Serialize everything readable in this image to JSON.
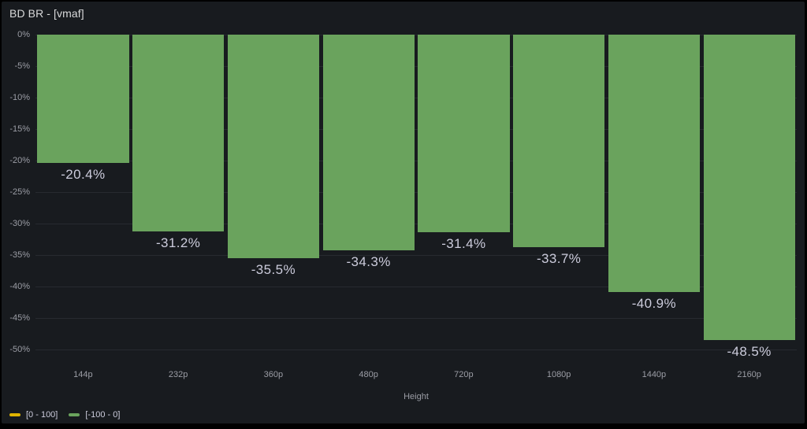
{
  "panel": {
    "title": "BD BR - [vmaf]"
  },
  "chart_data": {
    "type": "bar",
    "orientation": "vertical",
    "title": "BD BR - [vmaf]",
    "xlabel": "Height",
    "ylabel": "",
    "categories": [
      "144p",
      "232p",
      "360p",
      "480p",
      "720p",
      "1080p",
      "1440p",
      "2160p"
    ],
    "values": [
      -20.4,
      -31.2,
      -35.5,
      -34.3,
      -31.4,
      -33.7,
      -40.9,
      -48.5
    ],
    "value_labels": [
      "-20.4%",
      "-31.2%",
      "-35.5%",
      "-34.3%",
      "-31.4%",
      "-33.7%",
      "-40.9%",
      "-48.5%"
    ],
    "ylim": [
      -50,
      0
    ],
    "y_ticks": [
      "0%",
      "-5%",
      "-10%",
      "-15%",
      "-20%",
      "-25%",
      "-30%",
      "-35%",
      "-40%",
      "-45%",
      "-50%"
    ],
    "grid": true,
    "legend_position": "bottom-left"
  },
  "legend": {
    "items": [
      {
        "label": "[0 - 100]",
        "color": "#e0b400"
      },
      {
        "label": "[-100 - 0]",
        "color": "#6aa35d"
      }
    ]
  },
  "colors": {
    "background": "#000000",
    "panel_background": "#181b1f",
    "bar": "#6aa35d",
    "grid": "rgba(204,204,220,0.09)",
    "axis_text": "#9b9da5",
    "value_text": "#ccccdc",
    "title_text": "#d8d9da"
  }
}
